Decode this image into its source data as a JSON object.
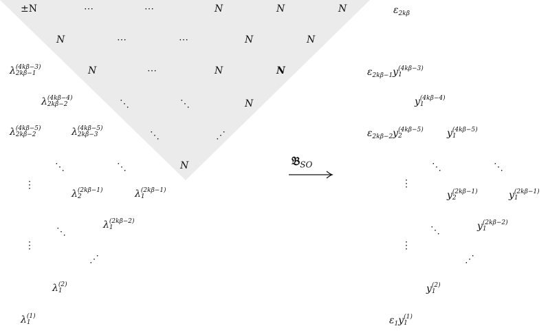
{
  "left": {
    "row1": [
      "±N",
      "⋯",
      "⋯",
      "N",
      "N",
      "N"
    ],
    "row2": [
      "N",
      "⋯",
      "⋯",
      "N",
      "N"
    ],
    "row3": {
      "lam": "λ",
      "sup": "(4kβ−3)",
      "sub": "2kβ−1",
      "cells": [
        "N",
        "⋯",
        "N",
        "N"
      ]
    },
    "row4": {
      "lam": "λ",
      "sup": "(4kβ−4)",
      "sub": "2kβ−2",
      "cells": [
        "⋱",
        "⋱",
        "N"
      ]
    },
    "row5": {
      "a": {
        "lam": "λ",
        "sup": "(4kβ−5)",
        "sub": "2kβ−2"
      },
      "b": {
        "lam": "λ",
        "sup": "(4kβ−5)",
        "sub": "2kβ−3"
      },
      "cells": [
        "⋱",
        "⋰"
      ]
    },
    "row6": [
      "⋱",
      "⋱",
      "N"
    ],
    "row7": {
      "vdots": "⋮",
      "a": {
        "lam": "λ",
        "sup": "(2kβ−1)",
        "sub": "2"
      },
      "b": {
        "lam": "λ",
        "sup": "(2kβ−1)",
        "sub": "1"
      }
    },
    "row8": {
      "ddots": "⋱",
      "c": {
        "lam": "λ",
        "sup": "(2kβ−2)",
        "sub": "1"
      }
    },
    "row9": {
      "vdots": "⋮",
      "udots": "⋰"
    },
    "row10": {
      "lam": "λ",
      "sup": "(2)",
      "sub": "1"
    },
    "row11": {
      "lam": "λ",
      "sup": "(1)",
      "sub": "1"
    }
  },
  "arrow": {
    "label": "𝔅",
    "sub": "SO"
  },
  "right": {
    "r1": "ε",
    "r1sub": "2kβ",
    "r3": {
      "eps": "ε",
      "epssub": "2kβ−1",
      "y": "y",
      "ysup": "(4kβ−3)",
      "ysub": "1"
    },
    "r4": {
      "y": "y",
      "ysup": "(4kβ−4)",
      "ysub": "1"
    },
    "r5": {
      "eps": "ε",
      "epssub": "2kβ−2",
      "a": {
        "y": "y",
        "ysup": "(4kβ−5)",
        "ysub": "2"
      },
      "b": {
        "y": "y",
        "ysup": "(4kβ−5)",
        "ysub": "1"
      }
    },
    "r6": [
      "⋱",
      "⋱"
    ],
    "r7": {
      "vdots": "⋮",
      "a": {
        "y": "y",
        "ysup": "(2kβ−1)",
        "ysub": "2"
      },
      "b": {
        "y": "y",
        "ysup": "(2kβ−1)",
        "ysub": "1"
      }
    },
    "r8": {
      "ddots": "⋱",
      "c": {
        "y": "y",
        "ysup": "(2kβ−2)",
        "ysub": "1"
      }
    },
    "r9": {
      "vdots": "⋮",
      "udots": "⋰"
    },
    "r10": {
      "y": "y",
      "ysup": "(2)",
      "ysub": "1"
    },
    "r11": {
      "eps": "ε",
      "epssub": "1",
      "y": "y",
      "ysup": "(1)",
      "ysub": "1"
    }
  },
  "colors": {
    "triangle": "#ebebeb",
    "ink": "#111111"
  }
}
